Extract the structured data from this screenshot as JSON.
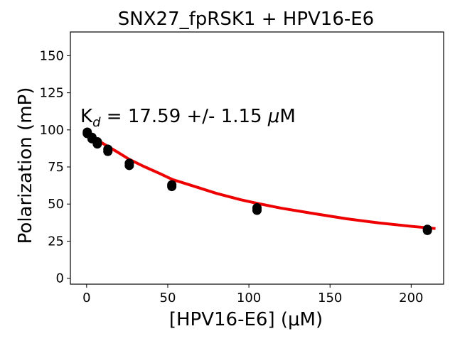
{
  "chart_data": {
    "type": "scatter",
    "title": "SNX27_fpRSK1 + HPV16-E6",
    "xlabel": "[HPV16-E6] (μM)",
    "ylabel": "Polarization (mP)",
    "xlim": [
      -10,
      220
    ],
    "ylim": [
      -4,
      166
    ],
    "xticks": [
      0,
      50,
      100,
      150,
      200
    ],
    "yticks": [
      0,
      25,
      50,
      75,
      100,
      125,
      150
    ],
    "xtick_labels": [
      "0",
      "50",
      "100",
      "150",
      "200"
    ],
    "ytick_labels": [
      "0",
      "25",
      "50",
      "75",
      "100",
      "125",
      "150"
    ],
    "grid": false,
    "annotation": {
      "prefix": "K",
      "subscript": "d",
      "suffix": " = 17.59 +/- 1.15 ",
      "unit_italic": "μ",
      "unit_rest": "M"
    },
    "points": [
      {
        "x": 0.4,
        "y": 98.5
      },
      {
        "x": 0.4,
        "y": 97.5
      },
      {
        "x": 3.3,
        "y": 95.0
      },
      {
        "x": 3.3,
        "y": 94.0
      },
      {
        "x": 6.6,
        "y": 92.0
      },
      {
        "x": 6.6,
        "y": 90.5
      },
      {
        "x": 13.1,
        "y": 87.0
      },
      {
        "x": 13.1,
        "y": 85.5
      },
      {
        "x": 26.3,
        "y": 77.5
      },
      {
        "x": 26.3,
        "y": 76.0
      },
      {
        "x": 52.5,
        "y": 63.0
      },
      {
        "x": 52.5,
        "y": 61.8
      },
      {
        "x": 105,
        "y": 47.5
      },
      {
        "x": 105,
        "y": 45.8
      },
      {
        "x": 210,
        "y": 33.0
      },
      {
        "x": 210,
        "y": 32.2
      }
    ],
    "fit": {
      "x": [
        0,
        3,
        7,
        13,
        20,
        26,
        35,
        45,
        53,
        65,
        80,
        95,
        105,
        120,
        140,
        160,
        180,
        200,
        215
      ],
      "y": [
        98.5,
        96.1,
        92.9,
        88.9,
        84.4,
        80.3,
        75.5,
        70.6,
        66.5,
        62.4,
        57.2,
        52.9,
        50.5,
        47.2,
        43.6,
        40.1,
        37.3,
        35.0,
        33.5
      ]
    },
    "marker_color": "#000000",
    "fit_color": "#ee0000"
  }
}
